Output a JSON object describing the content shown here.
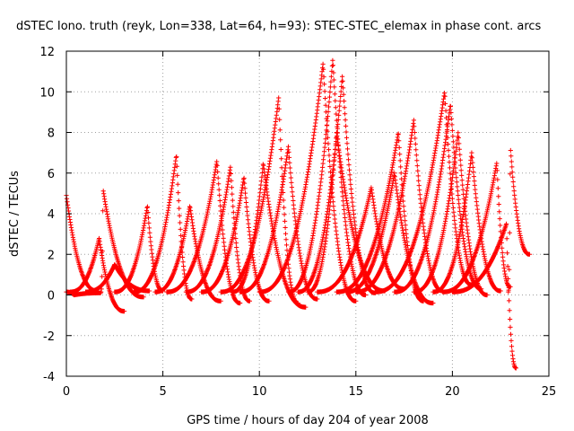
{
  "chart_data": {
    "type": "scatter",
    "title": "dSTEC Iono. truth (reyk, Lon=338, Lat=64, h=93): STEC-STEC_elemax in phase cont. arcs",
    "xlabel": "GPS time / hours of day 204 of year 2008",
    "ylabel": "dSTEC  / TECUs",
    "xlim": [
      0,
      25
    ],
    "ylim": [
      -4,
      12
    ],
    "xticks": [
      0,
      5,
      10,
      15,
      20,
      25
    ],
    "yticks": [
      -4,
      -2,
      0,
      2,
      4,
      6,
      8,
      10,
      12
    ],
    "grid": true,
    "marker": "+",
    "colors": {
      "series": "#ff0000",
      "grid": "#a0a0a0",
      "axes": "#000000"
    },
    "arcs": [
      {
        "start": 0.0,
        "peak_time": 0.0,
        "end": 1.6,
        "peak": 4.9,
        "end_value": 0.2
      },
      {
        "start": 0.0,
        "peak_time": 0.4,
        "end": 1.8,
        "peak": 0.0,
        "end_value": 0.1
      },
      {
        "start": 0.2,
        "peak_time": 1.7,
        "end": 3.0,
        "peak": 2.8,
        "end_value": -0.8
      },
      {
        "start": 1.8,
        "peak_time": 1.9,
        "end": 4.0,
        "peak": 5.2,
        "end_value": -0.1
      },
      {
        "start": 1.0,
        "peak_time": 2.5,
        "end": 4.3,
        "peak": 1.5,
        "end_value": 0.2
      },
      {
        "start": 2.5,
        "peak_time": 4.2,
        "end": 5.0,
        "peak": 4.4,
        "end_value": 0.2
      },
      {
        "start": 3.5,
        "peak_time": 5.7,
        "end": 6.5,
        "peak": 6.9,
        "end_value": -0.2
      },
      {
        "start": 4.6,
        "peak_time": 6.4,
        "end": 8.0,
        "peak": 4.4,
        "end_value": -0.3
      },
      {
        "start": 5.2,
        "peak_time": 7.8,
        "end": 9.0,
        "peak": 6.6,
        "end_value": -0.4
      },
      {
        "start": 6.2,
        "peak_time": 8.5,
        "end": 9.5,
        "peak": 6.3,
        "end_value": -0.3
      },
      {
        "start": 7.0,
        "peak_time": 9.2,
        "end": 10.5,
        "peak": 5.8,
        "end_value": -0.3
      },
      {
        "start": 8.0,
        "peak_time": 11.0,
        "end": 12.0,
        "peak": 9.7,
        "end_value": -0.4
      },
      {
        "start": 8.6,
        "peak_time": 10.2,
        "end": 12.4,
        "peak": 6.5,
        "end_value": -0.6
      },
      {
        "start": 9.0,
        "peak_time": 11.5,
        "end": 13.0,
        "peak": 7.3,
        "end_value": -0.2
      },
      {
        "start": 10.0,
        "peak_time": 13.3,
        "end": 15.0,
        "peak": 11.4,
        "end_value": -0.3
      },
      {
        "start": 11.5,
        "peak_time": 13.8,
        "end": 15.5,
        "peak": 11.6,
        "end_value": 0.0
      },
      {
        "start": 12.0,
        "peak_time": 14.3,
        "end": 16.0,
        "peak": 10.8,
        "end_value": 0.1
      },
      {
        "start": 12.5,
        "peak_time": 14.0,
        "end": 16.5,
        "peak": 8.0,
        "end_value": 0.2
      },
      {
        "start": 13.0,
        "peak_time": 15.8,
        "end": 17.5,
        "peak": 5.3,
        "end_value": 0.3
      },
      {
        "start": 14.0,
        "peak_time": 17.2,
        "end": 18.5,
        "peak": 8.0,
        "end_value": -0.3
      },
      {
        "start": 14.5,
        "peak_time": 17.0,
        "end": 19.0,
        "peak": 6.0,
        "end_value": -0.4
      },
      {
        "start": 15.0,
        "peak_time": 18.0,
        "end": 19.5,
        "peak": 8.6,
        "end_value": 0.2
      },
      {
        "start": 16.0,
        "peak_time": 19.6,
        "end": 21.0,
        "peak": 10.0,
        "end_value": 0.5
      },
      {
        "start": 17.0,
        "peak_time": 19.9,
        "end": 21.5,
        "peak": 9.4,
        "end_value": 0.3
      },
      {
        "start": 18.0,
        "peak_time": 20.3,
        "end": 21.8,
        "peak": 8.0,
        "end_value": 0.0
      },
      {
        "start": 19.0,
        "peak_time": 21.0,
        "end": 22.5,
        "peak": 7.0,
        "end_value": 0.2
      },
      {
        "start": 19.5,
        "peak_time": 22.3,
        "end": 23.0,
        "peak": 6.5,
        "end_value": 0.4
      },
      {
        "start": 20.0,
        "peak_time": 22.8,
        "end": 23.3,
        "peak": 3.5,
        "end_value": -3.6
      },
      {
        "start": 22.9,
        "peak_time": 23.0,
        "end": 24.0,
        "peak": 7.3,
        "end_value": 2.0
      }
    ]
  }
}
